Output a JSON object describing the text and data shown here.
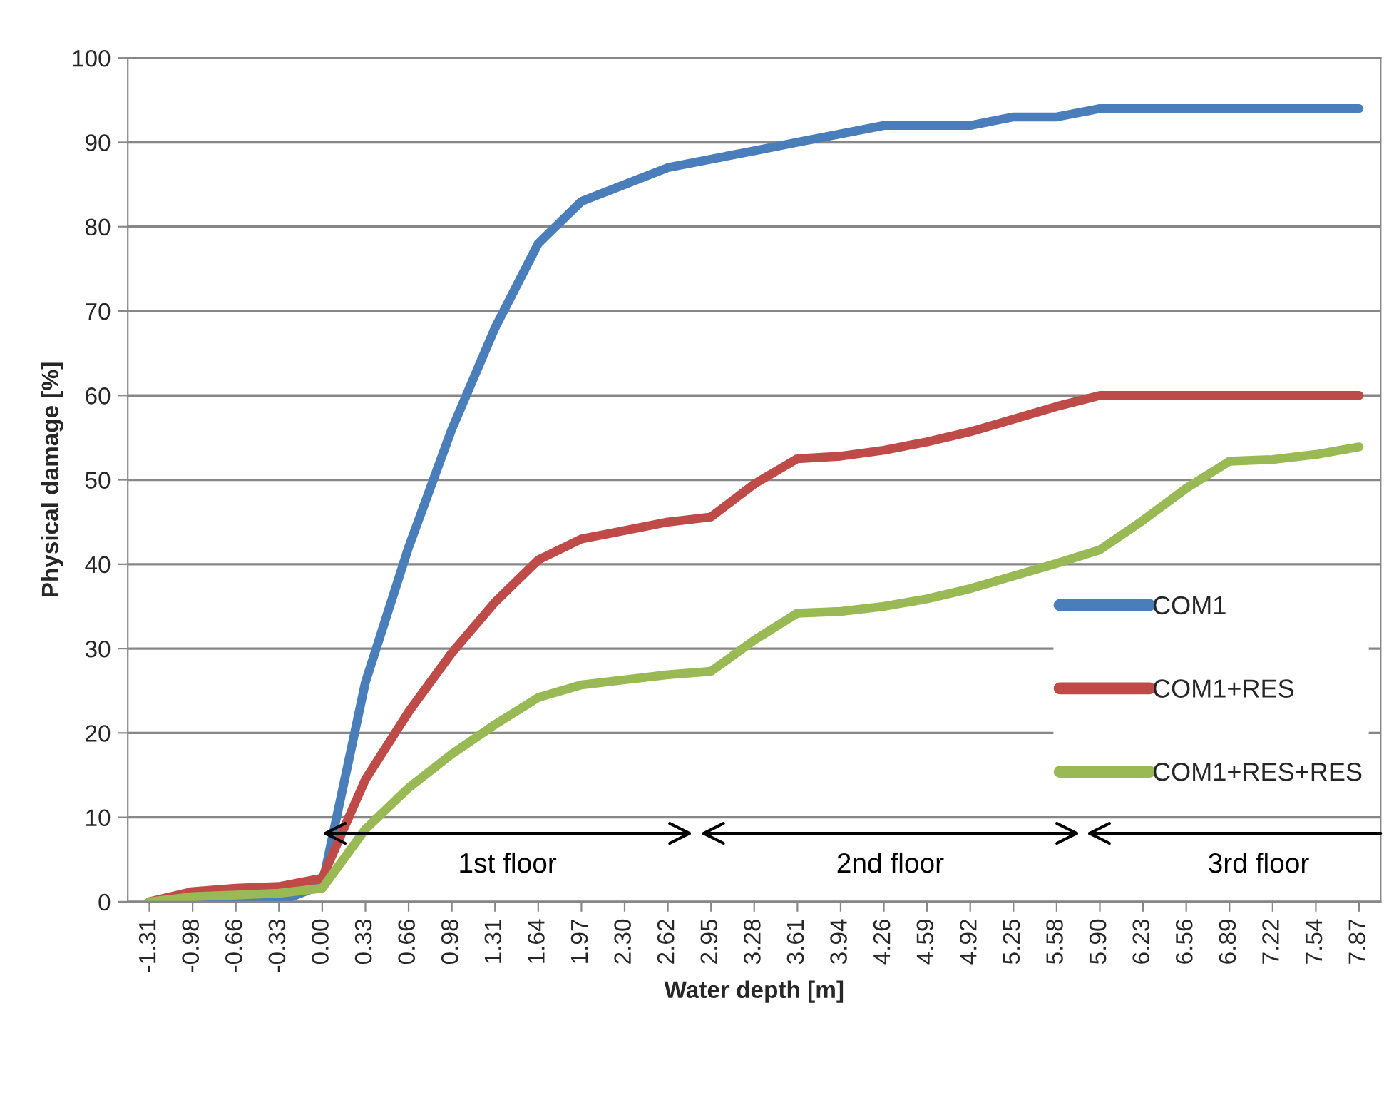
{
  "chart_data": {
    "type": "line",
    "xlabel": "Water depth [m]",
    "ylabel": "Physical damage [%]",
    "categories": [
      "-1.31",
      "-0.98",
      "-0.66",
      "-0.33",
      "0.00",
      "0.33",
      "0.66",
      "0.98",
      "1.31",
      "1.64",
      "1.97",
      "2.30",
      "2.62",
      "2.95",
      "3.28",
      "3.61",
      "3.94",
      "4.26",
      "4.59",
      "4.92",
      "5.25",
      "5.58",
      "5.90",
      "6.23",
      "6.56",
      "6.89",
      "7.22",
      "7.54",
      "7.87"
    ],
    "series": [
      {
        "name": "COM1",
        "color": "#4a7ebb",
        "values": [
          0,
          0,
          0,
          0,
          2,
          26,
          42,
          56,
          68,
          78,
          83,
          85,
          87,
          88,
          89,
          90,
          91,
          92,
          92,
          92,
          93,
          93,
          94,
          94,
          94,
          94,
          94,
          94,
          94
        ]
      },
      {
        "name": "COM1+RES",
        "color": "#be4b48",
        "values": [
          0,
          1.2,
          1.6,
          1.8,
          2.8,
          14.5,
          22.5,
          29.5,
          35.5,
          40.5,
          43,
          44,
          45,
          45.6,
          49.5,
          52.5,
          52.8,
          53.5,
          54.5,
          55.7,
          57.2,
          58.7,
          60,
          60,
          60,
          60,
          60,
          60,
          60
        ]
      },
      {
        "name": "COM1+RES+RES",
        "color": "#98b954",
        "values": [
          0,
          0.6,
          0.8,
          1,
          1.6,
          8.6,
          13.5,
          17.5,
          21,
          24.2,
          25.7,
          26.3,
          26.9,
          27.3,
          31,
          34.2,
          34.4,
          35,
          35.9,
          37.1,
          38.6,
          40.1,
          41.7,
          45.2,
          49,
          52.2,
          52.4,
          53,
          53.9
        ]
      }
    ],
    "annotations": [
      "1st floor",
      "2nd floor",
      "3rd floor"
    ],
    "ylim": [
      0,
      100
    ],
    "yticks": [
      0,
      10,
      20,
      30,
      40,
      50,
      60,
      70,
      80,
      90,
      100
    ],
    "grid": "y",
    "legend": "right",
    "line_style": "solid",
    "marker": "none"
  }
}
